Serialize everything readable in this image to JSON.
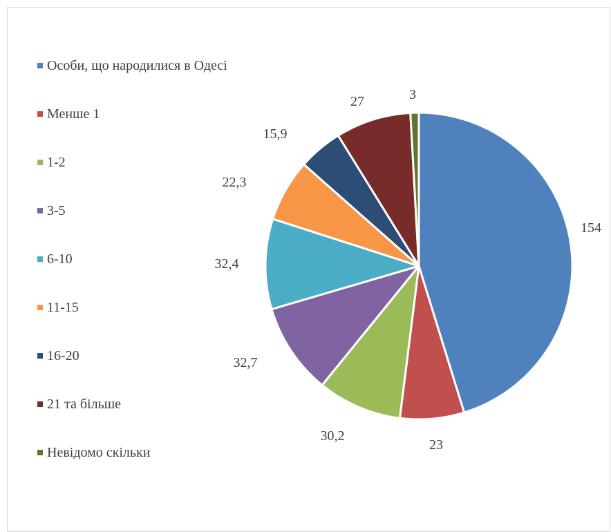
{
  "chart_data": {
    "type": "pie",
    "title": "",
    "categories": [
      "Особи, що народилися в Одесі",
      "Менше 1",
      "1-2",
      "3-5",
      "6-10",
      "11-15",
      "16-20",
      "21 та більше",
      "Невідомо скільки"
    ],
    "values": [
      154,
      23,
      30.2,
      32.7,
      32.4,
      22.3,
      15.9,
      27,
      3
    ],
    "data_labels": [
      "154",
      "23",
      "30,2",
      "32,7",
      "32,4",
      "22,3",
      "15,9",
      "27",
      "3"
    ],
    "colors": [
      "#4F81BD",
      "#C0504D",
      "#9BBB59",
      "#8064A2",
      "#4BACC6",
      "#F79646",
      "#2C4D75",
      "#772C2A",
      "#5F7530"
    ],
    "legend_position": "left"
  }
}
